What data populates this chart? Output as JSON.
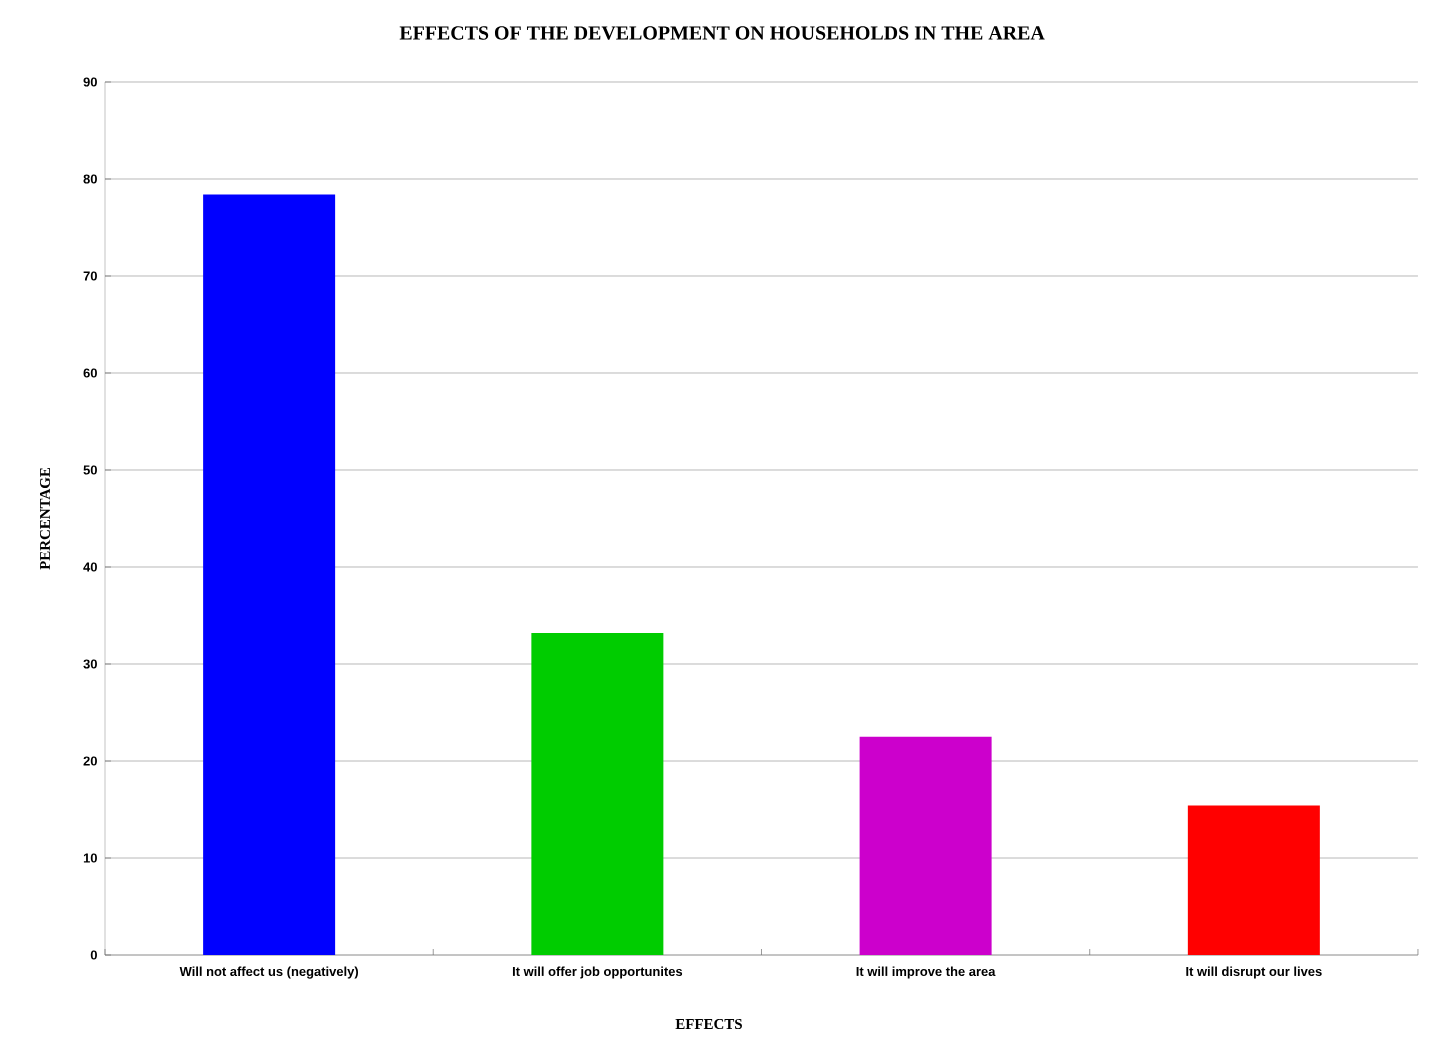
{
  "chart_data": {
    "type": "bar",
    "title": "EFFECTS OF THE DEVELOPMENT ON HOUSEHOLDS IN THE AREA",
    "xlabel": "EFFECTS",
    "ylabel": "PERCENTAGE",
    "categories": [
      "Will not affect us (negatively)",
      "It will offer job opportunites",
      "It will improve the area",
      "It will disrupt our lives"
    ],
    "values": [
      78.4,
      33.2,
      22.5,
      15.4
    ],
    "colors": [
      "#0000ff",
      "#00cc00",
      "#cc00cc",
      "#ff0000"
    ],
    "ylim": [
      0,
      90
    ],
    "yticks": [
      0,
      10,
      20,
      30,
      40,
      50,
      60,
      70,
      80,
      90
    ],
    "grid": "y"
  }
}
